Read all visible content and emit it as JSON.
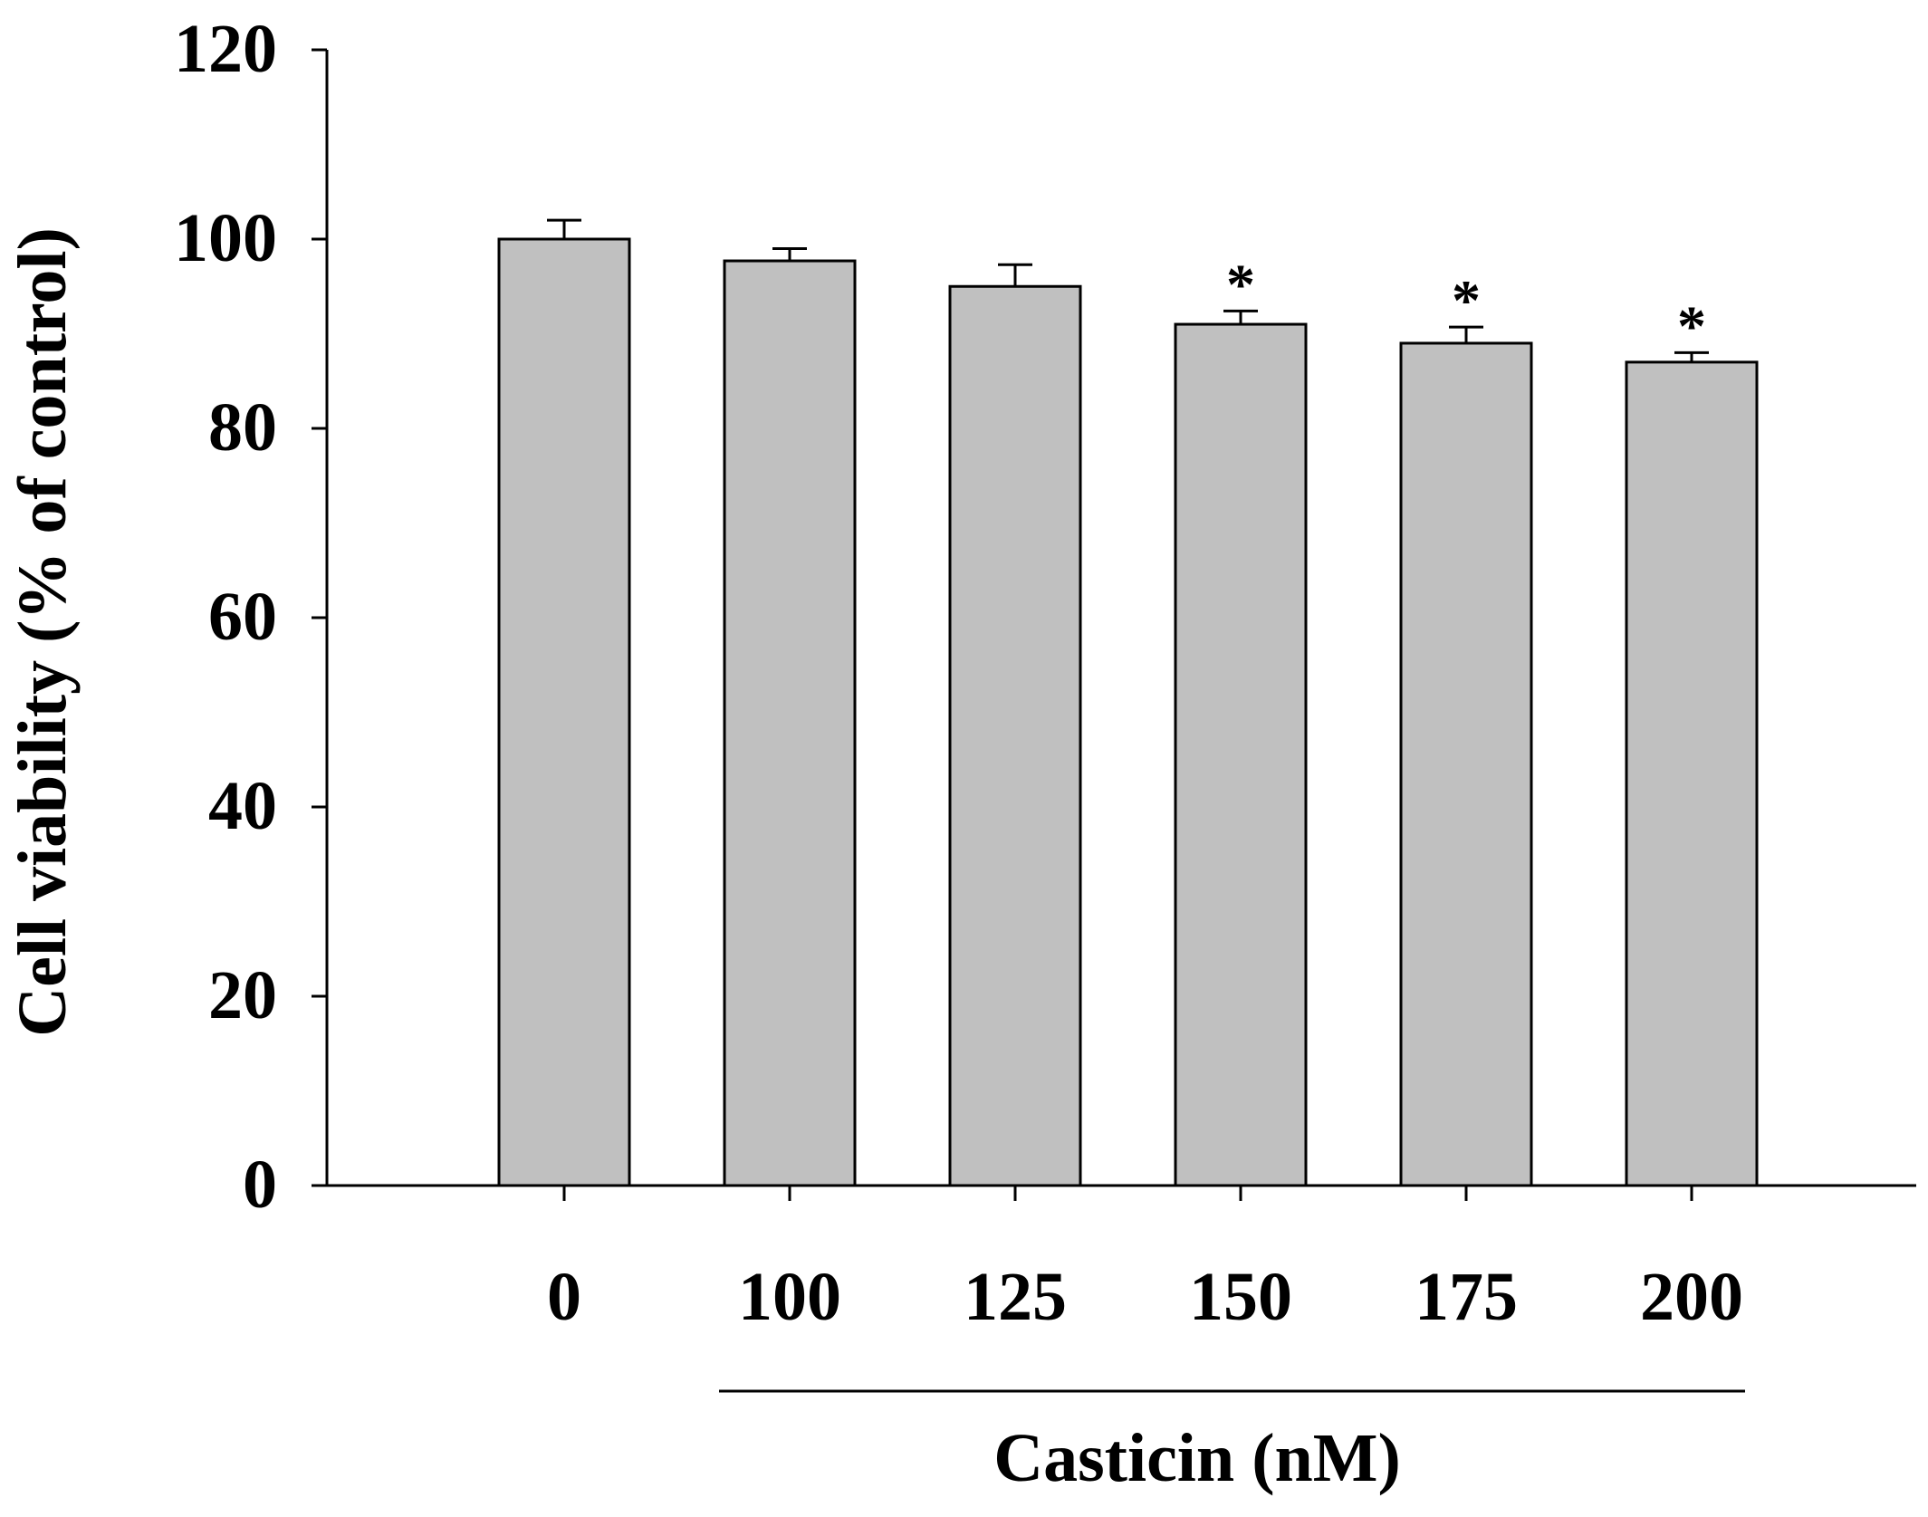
{
  "chart_data": {
    "type": "bar",
    "title": "",
    "xlabel": "Casticin (nM)",
    "ylabel": "Cell viability (% of control)",
    "categories": [
      "0",
      "100",
      "125",
      "150",
      "175",
      "200"
    ],
    "values": [
      100,
      97.7,
      95.0,
      91.0,
      89.0,
      87.0
    ],
    "errors": [
      2.0,
      1.3,
      2.3,
      1.4,
      1.7,
      1.0
    ],
    "significance": [
      "",
      "",
      "",
      "*",
      "*",
      "*"
    ],
    "ylim": [
      0,
      120
    ],
    "yticks": [
      0,
      20,
      40,
      60,
      80,
      100,
      120
    ],
    "grid": false,
    "legend": "none",
    "bar_color": "#c0c0c0",
    "edge_color": "#000000"
  }
}
